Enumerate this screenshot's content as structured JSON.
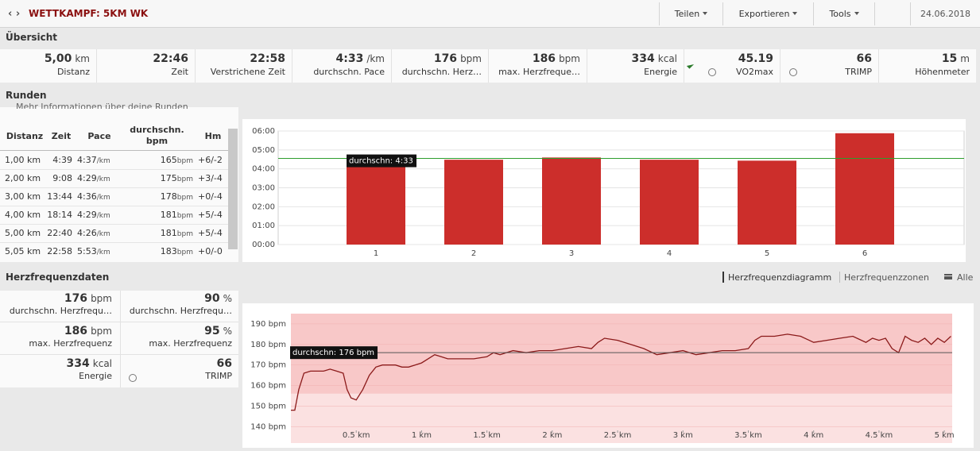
{
  "header": {
    "title": "WETTKAMPF: 5KM WK",
    "buttons": [
      "Teilen",
      "Exportieren",
      "Tools"
    ],
    "date": "24.06.2018"
  },
  "overview": {
    "title": "Übersicht",
    "stats": [
      {
        "value": "5,00",
        "unit": "km",
        "label": "Distanz"
      },
      {
        "value": "22:46",
        "label": "Zeit"
      },
      {
        "value": "22:58",
        "label": "Verstrichene Zeit"
      },
      {
        "value": "4:33",
        "unit": "/km",
        "label": "durchschn. Pace"
      },
      {
        "value": "176",
        "unit": "bpm",
        "label": "durchschn. Herz…"
      },
      {
        "value": "186",
        "unit": "bpm",
        "label": "max. Herzfreque…"
      },
      {
        "value": "334",
        "unit": "kcal",
        "label": "Energie"
      },
      {
        "value": "45.19",
        "label": "VO2max"
      },
      {
        "value": "66",
        "label": "TRIMP"
      },
      {
        "value": "15",
        "unit": "m",
        "label": "Höhenmeter"
      }
    ]
  },
  "laps": {
    "title": "Runden",
    "info": "Mehr Informationen über deine Runden",
    "columns": [
      "Distanz",
      "Zeit",
      "Pace",
      "durchschn. bpm",
      "Hm"
    ],
    "pace_unit": "/km",
    "hr_unit": "bpm",
    "rows": [
      [
        "1,00 km",
        "4:39",
        "4:37",
        "165",
        "+6/-2"
      ],
      [
        "2,00 km",
        "9:08",
        "4:29",
        "175",
        "+3/-4"
      ],
      [
        "3,00 km",
        "13:44",
        "4:36",
        "178",
        "+0/-4"
      ],
      [
        "4,00 km",
        "18:14",
        "4:29",
        "181",
        "+5/-4"
      ],
      [
        "5,00 km",
        "22:40",
        "4:26",
        "181",
        "+5/-4"
      ],
      [
        "5,05 km",
        "22:58",
        "5:53",
        "183",
        "+0/-0"
      ]
    ]
  },
  "heart_rate": {
    "title": "Herzfrequenzdaten",
    "tabs": [
      "Herzfrequenzdiagramm",
      "Herzfrequenzzonen",
      "Alle"
    ],
    "stats": [
      {
        "value": "176",
        "unit": "bpm",
        "label": "durchschn. Herzfrequ…"
      },
      {
        "value": "90",
        "unit": "%",
        "label": "durchschn. Herzfrequ…"
      },
      {
        "value": "186",
        "unit": "bpm",
        "label": "max. Herzfrequenz"
      },
      {
        "value": "95",
        "unit": "%",
        "label": "max. Herzfrequenz"
      },
      {
        "value": "334",
        "unit": "kcal",
        "label": "Energie"
      },
      {
        "value": "66",
        "label": "TRIMP"
      }
    ]
  },
  "chart_data": [
    {
      "type": "bar",
      "categories": [
        "1",
        "2",
        "3",
        "4",
        "5",
        "6"
      ],
      "values": [
        4.617,
        4.483,
        4.6,
        4.483,
        4.433,
        5.883
      ],
      "color": "#cc2e2b",
      "ylim": [
        0,
        6
      ],
      "yticks": [
        {
          "value": 0,
          "label": "00:00"
        },
        {
          "value": 1,
          "label": "01:00"
        },
        {
          "value": 2,
          "label": "02:00"
        },
        {
          "value": 3,
          "label": "03:00"
        },
        {
          "value": 4,
          "label": "04:00"
        },
        {
          "value": 5,
          "label": "05:00"
        },
        {
          "value": 6,
          "label": "06:00"
        }
      ],
      "grid": true,
      "reference_line": {
        "value": 4.55,
        "label": "durchschn: 4:33",
        "color": "#2e9e2e"
      }
    },
    {
      "type": "line",
      "x": [
        0,
        0.03,
        0.06,
        0.1,
        0.15,
        0.2,
        0.25,
        0.3,
        0.35,
        0.4,
        0.43,
        0.46,
        0.5,
        0.55,
        0.6,
        0.65,
        0.7,
        0.75,
        0.8,
        0.85,
        0.9,
        0.95,
        1.0,
        1.05,
        1.1,
        1.15,
        1.2,
        1.3,
        1.4,
        1.5,
        1.55,
        1.6,
        1.7,
        1.8,
        1.9,
        2.0,
        2.1,
        2.2,
        2.3,
        2.35,
        2.4,
        2.5,
        2.6,
        2.7,
        2.8,
        2.9,
        3.0,
        3.1,
        3.2,
        3.3,
        3.4,
        3.5,
        3.55,
        3.6,
        3.7,
        3.8,
        3.9,
        4.0,
        4.1,
        4.2,
        4.3,
        4.4,
        4.45,
        4.5,
        4.55,
        4.6,
        4.65,
        4.7,
        4.75,
        4.8,
        4.85,
        4.9,
        4.95,
        5.0,
        5.05
      ],
      "series": [
        {
          "color": "#8b1a1a",
          "values": [
            148,
            148,
            158,
            166,
            167,
            167,
            167,
            168,
            167,
            166,
            158,
            154,
            153,
            158,
            165,
            169,
            170,
            170,
            170,
            169,
            169,
            170,
            171,
            173,
            175,
            174,
            173,
            173,
            173,
            174,
            176,
            175,
            177,
            176,
            177,
            177,
            178,
            179,
            178,
            181,
            183,
            182,
            180,
            178,
            175,
            176,
            177,
            175,
            176,
            177,
            177,
            178,
            182,
            184,
            184,
            185,
            184,
            181,
            182,
            183,
            184,
            181,
            183,
            182,
            183,
            178,
            176,
            184,
            182,
            181,
            183,
            180,
            183,
            181,
            184
          ]
        }
      ],
      "xlim": [
        0,
        5.06
      ],
      "ylim": [
        132,
        195
      ],
      "xticks": [
        {
          "value": 0.5,
          "label": "0.5 km"
        },
        {
          "value": 1,
          "label": "1 km"
        },
        {
          "value": 1.5,
          "label": "1.5 km"
        },
        {
          "value": 2,
          "label": "2 km"
        },
        {
          "value": 2.5,
          "label": "2.5 km"
        },
        {
          "value": 3,
          "label": "3 km"
        },
        {
          "value": 3.5,
          "label": "3.5 km"
        },
        {
          "value": 4,
          "label": "4 km"
        },
        {
          "value": 4.5,
          "label": "4.5 km"
        },
        {
          "value": 5,
          "label": "5 km"
        }
      ],
      "yticks": [
        {
          "value": 140,
          "label": "140 bpm"
        },
        {
          "value": 150,
          "label": "150 bpm"
        },
        {
          "value": 160,
          "label": "160 bpm"
        },
        {
          "value": 170,
          "label": "170 bpm"
        },
        {
          "value": 180,
          "label": "180 bpm"
        },
        {
          "value": 190,
          "label": "190 bpm"
        }
      ],
      "grid": true,
      "bands": [
        {
          "from": 156,
          "to": 195,
          "color": "#f8c8c8"
        },
        {
          "from": 132,
          "to": 156,
          "color": "#fbe1e1"
        }
      ],
      "reference_line": {
        "value": 176,
        "label": "durchschn: 176 bpm",
        "color": "#555555"
      }
    }
  ]
}
